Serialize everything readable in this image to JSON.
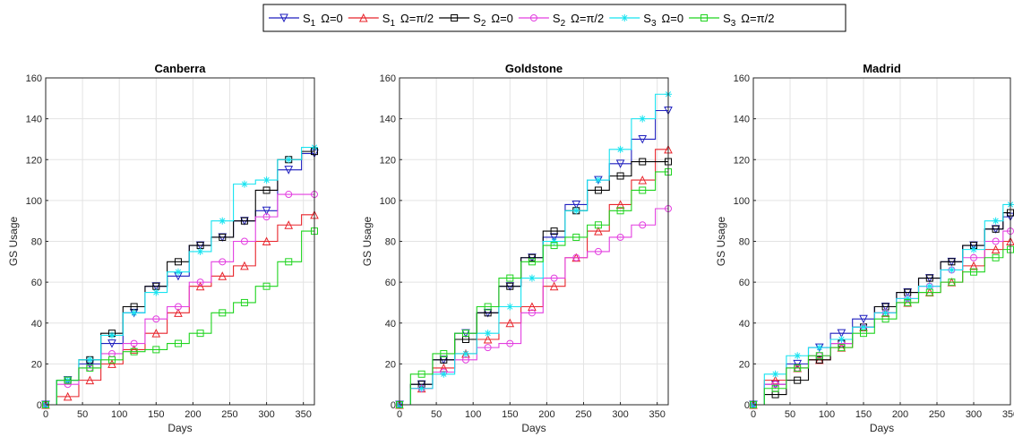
{
  "legend": [
    {
      "name": "S",
      "sub": "1",
      "omega": "Ω=0",
      "color": "#1f1fbf",
      "marker": "triangle-down"
    },
    {
      "name": "S",
      "sub": "1",
      "omega": "Ω=π/2",
      "color": "#e8242b",
      "marker": "triangle-up"
    },
    {
      "name": "S",
      "sub": "2",
      "omega": "Ω=0",
      "color": "#000000",
      "marker": "square"
    },
    {
      "name": "S",
      "sub": "2",
      "omega": "Ω=π/2",
      "color": "#e33fe0",
      "marker": "circle"
    },
    {
      "name": "S",
      "sub": "3",
      "omega": "Ω=0",
      "color": "#16e3f0",
      "marker": "asterisk"
    },
    {
      "name": "S",
      "sub": "3",
      "omega": "Ω=π/2",
      "color": "#1fd41f",
      "marker": "square"
    }
  ],
  "chart_data": [
    {
      "type": "line",
      "title": "Canberra",
      "xlabel": "Days",
      "ylabel": "GS Usage",
      "xlim": [
        0,
        365
      ],
      "ylim": [
        0,
        160
      ],
      "xticks": [
        0,
        50,
        100,
        150,
        200,
        250,
        300,
        350
      ],
      "yticks": [
        0,
        20,
        40,
        60,
        80,
        100,
        120,
        140,
        160
      ],
      "grid": true,
      "series": [
        {
          "name": "S1 Ω=0",
          "x": [
            0,
            30,
            60,
            90,
            120,
            150,
            180,
            210,
            240,
            270,
            300,
            330,
            365
          ],
          "y": [
            0,
            12,
            20,
            30,
            45,
            58,
            63,
            78,
            82,
            90,
            95,
            115,
            123
          ]
        },
        {
          "name": "S1 Ω=π/2",
          "x": [
            0,
            30,
            60,
            90,
            120,
            150,
            180,
            210,
            240,
            270,
            300,
            330,
            365
          ],
          "y": [
            0,
            4,
            12,
            20,
            27,
            35,
            45,
            58,
            63,
            68,
            80,
            88,
            93
          ]
        },
        {
          "name": "S2 Ω=0",
          "x": [
            0,
            30,
            60,
            90,
            120,
            150,
            180,
            210,
            240,
            270,
            300,
            330,
            365
          ],
          "y": [
            0,
            12,
            22,
            35,
            48,
            58,
            70,
            78,
            82,
            90,
            105,
            120,
            124
          ]
        },
        {
          "name": "S2 Ω=π/2",
          "x": [
            0,
            30,
            60,
            90,
            120,
            150,
            180,
            210,
            240,
            270,
            300,
            330,
            365
          ],
          "y": [
            0,
            10,
            18,
            25,
            30,
            42,
            48,
            60,
            70,
            80,
            92,
            103,
            103
          ]
        },
        {
          "name": "S3 Ω=0",
          "x": [
            0,
            30,
            60,
            90,
            120,
            150,
            180,
            210,
            240,
            270,
            300,
            330,
            365
          ],
          "y": [
            0,
            12,
            22,
            34,
            45,
            55,
            65,
            75,
            90,
            108,
            110,
            120,
            126
          ]
        },
        {
          "name": "S3 Ω=π/2",
          "x": [
            0,
            30,
            60,
            90,
            120,
            150,
            180,
            210,
            240,
            270,
            300,
            330,
            365
          ],
          "y": [
            0,
            12,
            18,
            22,
            26,
            27,
            30,
            35,
            45,
            50,
            58,
            70,
            85
          ]
        }
      ]
    },
    {
      "type": "line",
      "title": "Goldstone",
      "xlabel": "Days",
      "ylabel": "GS Usage",
      "xlim": [
        0,
        365
      ],
      "ylim": [
        0,
        160
      ],
      "xticks": [
        0,
        50,
        100,
        150,
        200,
        250,
        300,
        350
      ],
      "yticks": [
        0,
        20,
        40,
        60,
        80,
        100,
        120,
        140,
        160
      ],
      "grid": true,
      "series": [
        {
          "name": "S1 Ω=0",
          "x": [
            0,
            30,
            60,
            90,
            120,
            150,
            180,
            210,
            240,
            270,
            300,
            330,
            365
          ],
          "y": [
            0,
            10,
            22,
            35,
            45,
            58,
            72,
            82,
            98,
            110,
            118,
            130,
            144
          ]
        },
        {
          "name": "S1 Ω=π/2",
          "x": [
            0,
            30,
            60,
            90,
            120,
            150,
            180,
            210,
            240,
            270,
            300,
            330,
            365
          ],
          "y": [
            0,
            8,
            18,
            25,
            32,
            40,
            48,
            58,
            72,
            85,
            98,
            110,
            125
          ]
        },
        {
          "name": "S2 Ω=0",
          "x": [
            0,
            30,
            60,
            90,
            120,
            150,
            180,
            210,
            240,
            270,
            300,
            330,
            365
          ],
          "y": [
            0,
            10,
            22,
            32,
            45,
            58,
            72,
            85,
            95,
            105,
            112,
            119,
            119
          ]
        },
        {
          "name": "S2 Ω=π/2",
          "x": [
            0,
            30,
            60,
            90,
            120,
            150,
            180,
            210,
            240,
            270,
            300,
            330,
            365
          ],
          "y": [
            0,
            8,
            16,
            22,
            28,
            30,
            45,
            62,
            72,
            75,
            82,
            88,
            96
          ]
        },
        {
          "name": "S3 Ω=0",
          "x": [
            0,
            30,
            60,
            90,
            120,
            150,
            180,
            210,
            240,
            270,
            300,
            330,
            365
          ],
          "y": [
            0,
            8,
            15,
            25,
            35,
            48,
            62,
            80,
            95,
            110,
            125,
            140,
            152
          ]
        },
        {
          "name": "S3 Ω=π/2",
          "x": [
            0,
            30,
            60,
            90,
            120,
            150,
            180,
            210,
            240,
            270,
            300,
            330,
            365
          ],
          "y": [
            0,
            15,
            25,
            35,
            48,
            62,
            70,
            78,
            82,
            88,
            95,
            105,
            114
          ]
        }
      ]
    },
    {
      "type": "line",
      "title": "Madrid",
      "xlabel": "Days",
      "ylabel": "GS Usage",
      "xlim": [
        0,
        350
      ],
      "ylim": [
        0,
        160
      ],
      "xticks": [
        0,
        50,
        100,
        150,
        200,
        250,
        300,
        350
      ],
      "yticks": [
        0,
        20,
        40,
        60,
        80,
        100,
        120,
        140,
        160
      ],
      "grid": true,
      "series": [
        {
          "name": "S1 Ω=0",
          "x": [
            0,
            30,
            60,
            90,
            120,
            150,
            180,
            210,
            240,
            270,
            300,
            330,
            350
          ],
          "y": [
            0,
            10,
            20,
            28,
            35,
            42,
            48,
            55,
            62,
            70,
            78,
            86,
            92
          ]
        },
        {
          "name": "S1 Ω=π/2",
          "x": [
            0,
            30,
            60,
            90,
            120,
            150,
            180,
            210,
            240,
            270,
            300,
            330,
            350
          ],
          "y": [
            0,
            12,
            18,
            22,
            28,
            38,
            45,
            50,
            55,
            60,
            68,
            76,
            80
          ]
        },
        {
          "name": "S2 Ω=0",
          "x": [
            0,
            30,
            60,
            90,
            120,
            150,
            180,
            210,
            240,
            270,
            300,
            330,
            350
          ],
          "y": [
            0,
            5,
            12,
            22,
            30,
            38,
            48,
            55,
            62,
            70,
            78,
            86,
            94
          ]
        },
        {
          "name": "S2 Ω=π/2",
          "x": [
            0,
            30,
            60,
            90,
            120,
            150,
            180,
            210,
            240,
            270,
            300,
            330,
            350
          ],
          "y": [
            0,
            10,
            18,
            24,
            30,
            38,
            45,
            52,
            58,
            66,
            72,
            80,
            85
          ]
        },
        {
          "name": "S3 Ω=0",
          "x": [
            0,
            30,
            60,
            90,
            120,
            150,
            180,
            210,
            240,
            270,
            300,
            330,
            350
          ],
          "y": [
            0,
            15,
            24,
            28,
            32,
            38,
            45,
            52,
            58,
            66,
            76,
            90,
            98
          ]
        },
        {
          "name": "S3 Ω=π/2",
          "x": [
            0,
            30,
            60,
            90,
            120,
            150,
            180,
            210,
            240,
            270,
            300,
            330,
            350
          ],
          "y": [
            0,
            8,
            18,
            24,
            28,
            35,
            42,
            50,
            55,
            60,
            65,
            72,
            76
          ]
        }
      ]
    }
  ]
}
